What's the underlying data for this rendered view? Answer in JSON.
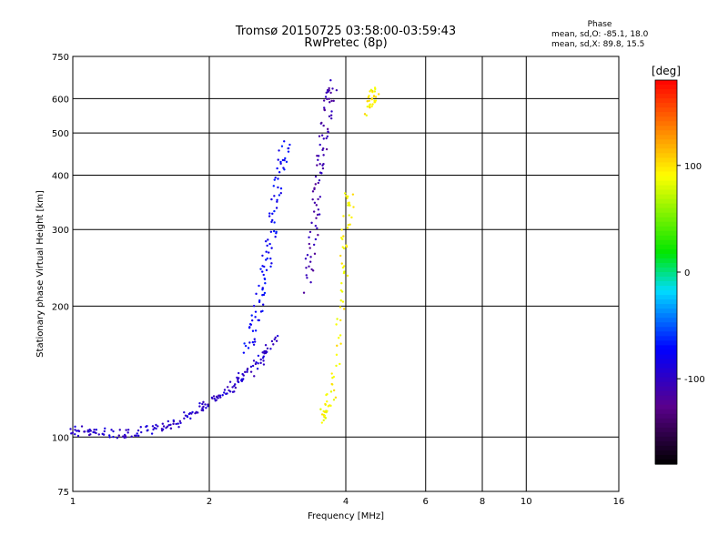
{
  "chart_data": {
    "type": "scatter",
    "title": "Tromsø 20150725 03:58:00-03:59:43",
    "subtitle": "RwPretec (8p)",
    "xlabel": "Frequency [MHz]",
    "ylabel": "Stationary phase Virtual Height [km]",
    "x_scale": "log",
    "y_scale": "log",
    "xlim": [
      1,
      16
    ],
    "ylim": [
      75,
      750
    ],
    "x_ticks": [
      1,
      2,
      4,
      6,
      8,
      10,
      16
    ],
    "y_ticks": [
      75,
      100,
      200,
      300,
      400,
      500,
      600,
      750
    ],
    "grid": true,
    "colorbar": {
      "label": "[deg]",
      "range": [
        -180,
        180
      ],
      "ticks": [
        100,
        0,
        -100
      ]
    },
    "phase_stats": {
      "title": "Phase",
      "o_line": "mean, sd,O: -85.1, 18.0",
      "x_line": "mean, sd,X:  89.8, 15.5"
    },
    "series": [
      {
        "description": "O-mode low trace",
        "phase": -95,
        "points": [
          [
            1.0,
            102
          ],
          [
            1.05,
            104
          ],
          [
            1.1,
            103
          ],
          [
            1.2,
            102
          ],
          [
            1.3,
            102
          ],
          [
            1.4,
            103
          ],
          [
            1.5,
            104
          ],
          [
            1.6,
            106
          ],
          [
            1.7,
            108
          ],
          [
            1.8,
            112
          ],
          [
            1.9,
            116
          ],
          [
            2.0,
            120
          ],
          [
            2.1,
            124
          ],
          [
            2.2,
            128
          ],
          [
            2.3,
            133
          ],
          [
            2.4,
            138
          ],
          [
            2.5,
            145
          ],
          [
            2.6,
            152
          ],
          [
            2.7,
            160
          ],
          [
            2.8,
            170
          ]
        ]
      },
      {
        "description": "O-mode F trace",
        "phase": -75,
        "points": [
          [
            2.4,
            155
          ],
          [
            2.5,
            175
          ],
          [
            2.55,
            195
          ],
          [
            2.6,
            215
          ],
          [
            2.65,
            240
          ],
          [
            2.7,
            265
          ],
          [
            2.75,
            300
          ],
          [
            2.8,
            340
          ],
          [
            2.85,
            390
          ],
          [
            2.9,
            440
          ],
          [
            2.95,
            480
          ]
        ]
      },
      {
        "description": "O-mode upper F trace",
        "phase": -110,
        "points": [
          [
            3.3,
            220
          ],
          [
            3.35,
            260
          ],
          [
            3.4,
            300
          ],
          [
            3.45,
            350
          ],
          [
            3.5,
            400
          ],
          [
            3.55,
            450
          ],
          [
            3.6,
            500
          ],
          [
            3.65,
            560
          ],
          [
            3.7,
            620
          ],
          [
            3.75,
            650
          ]
        ]
      },
      {
        "description": "X-mode trace",
        "phase": 92,
        "points": [
          [
            3.5,
            110
          ],
          [
            3.6,
            115
          ],
          [
            3.7,
            120
          ],
          [
            3.8,
            140
          ],
          [
            3.9,
            190
          ],
          [
            3.95,
            240
          ],
          [
            4.0,
            290
          ],
          [
            4.05,
            340
          ],
          [
            4.1,
            370
          ]
        ]
      },
      {
        "description": "X-mode top",
        "phase": 95,
        "points": [
          [
            4.5,
            560
          ],
          [
            4.55,
            585
          ],
          [
            4.6,
            610
          ],
          [
            4.65,
            635
          ]
        ]
      }
    ]
  }
}
